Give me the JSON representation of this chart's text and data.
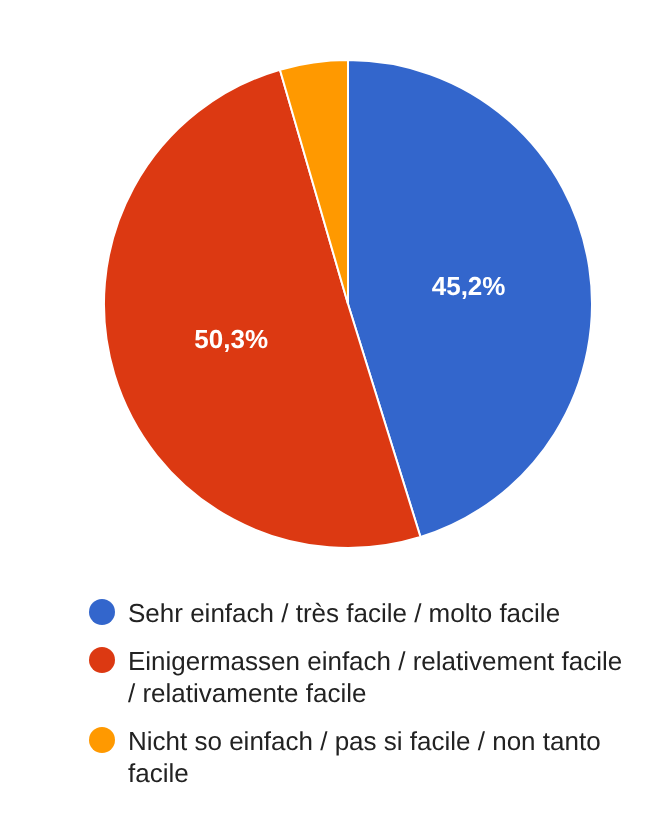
{
  "chart_data": {
    "type": "pie",
    "categories": [
      "Sehr einfach / très facile / molto facile",
      "Einigermassen einfach / relativement facile / relativamente facile",
      "Nicht so einfach / pas si facile / non tanto facile"
    ],
    "values": [
      45.2,
      50.3,
      4.5
    ],
    "colors": [
      "#3366cc",
      "#dc3912",
      "#ff9900"
    ],
    "value_labels": [
      "45,2%",
      "50,3%",
      null
    ],
    "legend": "bottom"
  }
}
